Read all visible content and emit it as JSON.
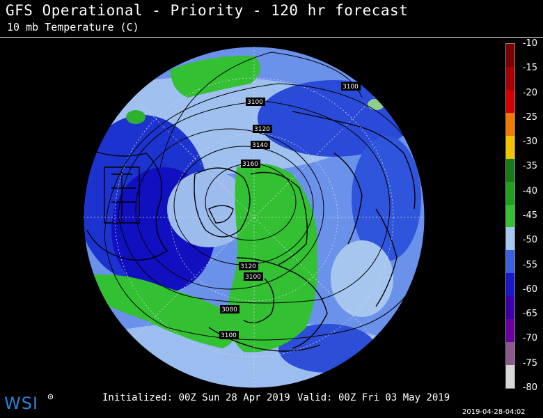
{
  "header": {
    "title": "GFS Operational - Priority - 120 hr forecast",
    "subtitle": "10 mb Temperature (C)"
  },
  "colorbar": {
    "labels": [
      "-10",
      "-15",
      "-20",
      "-25",
      "-30",
      "-35",
      "-40",
      "-45",
      "-50",
      "-55",
      "-60",
      "-65",
      "-70",
      "-75",
      "-80"
    ],
    "colors": [
      "#7a0000",
      "#a80000",
      "#d40000",
      "#f07a00",
      "#f0c400",
      "#1a7a1a",
      "#1f9f1f",
      "#33c033",
      "#a6c8ef",
      "#3a60e0",
      "#1818c8",
      "#3c00a8",
      "#6a00a0",
      "#8a5a8a",
      "#d8d8d8"
    ]
  },
  "map": {
    "contour_labels": [
      "3100",
      "3100",
      "3120",
      "3140",
      "3160",
      "3120",
      "3100",
      "3080",
      "3100"
    ]
  },
  "footer": {
    "initialized": "Initialized: 00Z Sun 28 Apr 2019",
    "valid": "Valid: 00Z Fri 03 May 2019",
    "timestamp": "2019-04-28-04:02",
    "logo": "WSI"
  }
}
